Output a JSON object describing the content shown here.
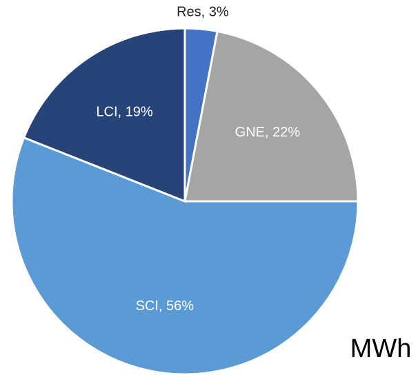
{
  "chart_data": {
    "type": "pie",
    "categories": [
      "Res",
      "GNE",
      "SCI",
      "LCI"
    ],
    "values": [
      3,
      22,
      56,
      19
    ],
    "value_labels": [
      "Res, 3%",
      "GNE, 22%",
      "SCI, 56%",
      "LCI, 19%"
    ],
    "colors": [
      "#4472c4",
      "#a5a5a5",
      "#5b9bd5",
      "#264478"
    ],
    "annotation": "MWh"
  }
}
